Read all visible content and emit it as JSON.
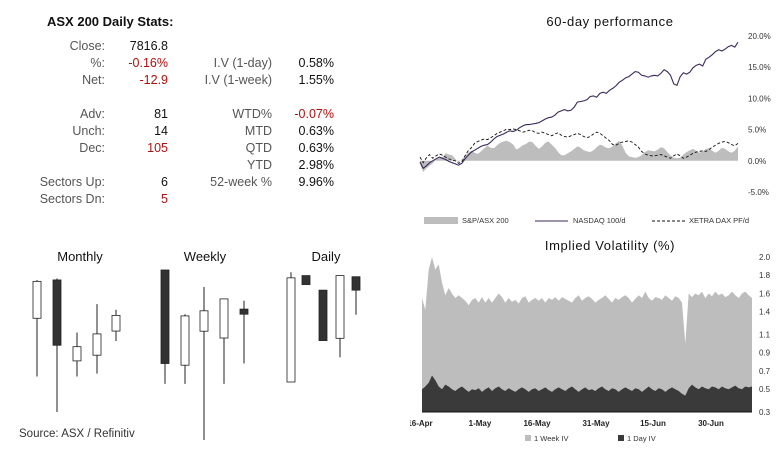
{
  "stats": {
    "title": "ASX 200 Daily Stats:",
    "left": [
      {
        "label": "Close:",
        "value": "7816.8",
        "neg": false
      },
      {
        "label": "%:",
        "value": "-0.16%",
        "neg": true
      },
      {
        "label": "Net:",
        "value": "-12.9",
        "neg": true
      },
      {
        "label": "Adv:",
        "value": "81",
        "neg": false
      },
      {
        "label": "Unch:",
        "value": "14",
        "neg": false
      },
      {
        "label": "Dec:",
        "value": "105",
        "neg": true
      },
      {
        "label": "Sectors Up:",
        "value": "6",
        "neg": false
      },
      {
        "label": "Sectors Dn:",
        "value": "5",
        "neg": true
      }
    ],
    "right": [
      {
        "label": "I.V (1-day)",
        "value": "0.58%",
        "neg": false
      },
      {
        "label": "I.V (1-week)",
        "value": "1.55%",
        "neg": false
      },
      {
        "label": "WTD%",
        "value": "-0.07%",
        "neg": true
      },
      {
        "label": "MTD",
        "value": "0.63%",
        "neg": false
      },
      {
        "label": "QTD",
        "value": "0.63%",
        "neg": false
      },
      {
        "label": "YTD",
        "value": "2.98%",
        "neg": false
      },
      {
        "label": "52-week %",
        "value": "9.96%",
        "neg": false
      }
    ]
  },
  "source": "Source: ASX / Refinitiv",
  "colors": {
    "negative": "#b01010",
    "area_light": "#bdbdbd",
    "area_dark": "#3a3a3a",
    "nasdaq": "#3b2a5a"
  },
  "chart_data": [
    {
      "type": "line",
      "title": "60-day performance",
      "ylim": [
        -5,
        20
      ],
      "yticks": [
        "20.0%",
        "15.0%",
        "10.0%",
        "5.0%",
        "0.0%",
        "-5.0%"
      ],
      "grid": false,
      "legend_position": "bottom",
      "series": [
        {
          "name": "S&P/ASX 200",
          "style": "area",
          "values": [
            -0.5,
            -1.8,
            -1.2,
            -0.8,
            -0.4,
            0.2,
            0.4,
            0.6,
            1.2,
            1.0,
            0.9,
            0.3,
            -0.3,
            0.2,
            0.8,
            1.3,
            1.6,
            1.3,
            1.1,
            1.5,
            2.0,
            2.4,
            2.1,
            2.0,
            2.5,
            2.9,
            3.1,
            3.2,
            3.0,
            2.6,
            1.8,
            2.1,
            2.5,
            2.7,
            3.1,
            3.0,
            2.4,
            1.9,
            2.3,
            2.9,
            3.1,
            2.6,
            2.1,
            1.4,
            0.9,
            0.9,
            1.2,
            1.5,
            1.9,
            2.3,
            2.1,
            1.7,
            1.5,
            1.4,
            1.7,
            2.2,
            2.6,
            2.4,
            2.1,
            2.0,
            2.3,
            2.8,
            3.2,
            2.4,
            1.3,
            0.7,
            0.6,
            0.5,
            0.6,
            0.9,
            1.4,
            1.7,
            1.6,
            1.5,
            1.8,
            2.2,
            2.0,
            1.4,
            0.9,
            0.5,
            0.4,
            0.5,
            1.0,
            1.4,
            1.7,
            1.9,
            1.6,
            1.3,
            1.5,
            1.9,
            2.0,
            1.6,
            1.3,
            1.6,
            2.1,
            1.9,
            1.5,
            1.3,
            1.6,
            2.3
          ]
        },
        {
          "name": "NASDAQ 100/d",
          "style": "line",
          "values": [
            -0.2,
            -1.2,
            -0.8,
            -0.3,
            0.0,
            0.3,
            0.6,
            0.4,
            0.2,
            -0.1,
            -0.3,
            -0.5,
            -0.7,
            -0.4,
            0.3,
            0.9,
            1.4,
            1.7,
            2.0,
            2.3,
            2.5,
            2.6,
            3.0,
            3.5,
            3.9,
            4.1,
            4.3,
            4.6,
            4.8,
            4.7,
            4.9,
            5.3,
            5.6,
            5.8,
            5.8,
            5.9,
            6.0,
            6.1,
            6.4,
            6.7,
            6.9,
            7.0,
            7.3,
            7.8,
            8.0,
            8.2,
            8.0,
            8.1,
            8.6,
            9.4,
            9.5,
            9.6,
            9.8,
            10.3,
            10.4,
            10.2,
            10.8,
            11.0,
            10.8,
            11.3,
            11.6,
            12.0,
            12.6,
            12.9,
            13.3,
            13.5,
            13.9,
            14.3,
            14.2,
            13.7,
            13.6,
            13.4,
            13.6,
            13.7,
            13.6,
            14.0,
            14.6,
            14.3,
            13.7,
            12.3,
            12.1,
            13.5,
            14.1,
            13.9,
            14.2,
            14.9,
            15.3,
            15.5,
            15.2,
            16.3,
            16.6,
            17.0,
            17.5,
            17.8,
            17.6,
            17.9,
            18.3,
            18.5,
            18.2,
            19.0
          ]
        },
        {
          "name": "XETRA DAX PF/d",
          "style": "dashed",
          "values": [
            0.6,
            -0.3,
            0.5,
            1.0,
            0.4,
            0.8,
            1.1,
            0.9,
            0.6,
            0.3,
            0.1,
            0.0,
            -0.4,
            -0.2,
            0.8,
            1.6,
            2.1,
            2.8,
            3.1,
            3.3,
            3.5,
            3.4,
            3.7,
            4.0,
            4.4,
            4.6,
            4.8,
            5.1,
            5.0,
            5.1,
            5.0,
            4.8,
            4.6,
            4.7,
            4.9,
            4.8,
            4.5,
            4.4,
            4.6,
            4.4,
            4.2,
            4.0,
            4.3,
            4.5,
            4.1,
            3.9,
            3.8,
            4.0,
            4.2,
            4.4,
            4.2,
            3.9,
            3.7,
            3.9,
            4.3,
            4.6,
            4.4,
            4.0,
            3.6,
            3.2,
            2.6,
            2.5,
            2.8,
            3.0,
            3.1,
            3.2,
            3.0,
            2.6,
            2.2,
            1.5,
            1.1,
            0.9,
            0.8,
            0.8,
            0.9,
            1.0,
            0.8,
            0.6,
            0.4,
            0.8,
            1.1,
            0.8,
            0.4,
            0.6,
            0.9,
            1.2,
            1.4,
            1.5,
            1.6,
            1.5,
            1.8,
            2.2,
            2.5,
            2.8,
            3.0,
            3.1,
            2.9,
            2.6,
            2.4,
            2.8
          ]
        }
      ]
    },
    {
      "type": "area",
      "title": "Implied Volatility (%)",
      "ylim": [
        0.3,
        2.0
      ],
      "yticks": [
        "2.0",
        "1.8",
        "1.6",
        "1.4",
        "1.1",
        "0.9",
        "0.7",
        "0.5",
        "0.3"
      ],
      "x_labels": [
        "16-Apr",
        "1-May",
        "16-May",
        "31-May",
        "15-Jun",
        "30-Jun"
      ],
      "grid": false,
      "legend_position": "bottom",
      "series": [
        {
          "name": "1 Week IV",
          "values": [
            1.55,
            1.42,
            1.86,
            2.0,
            1.86,
            1.92,
            1.72,
            1.58,
            1.66,
            1.6,
            1.55,
            1.58,
            1.55,
            1.52,
            1.47,
            1.53,
            1.55,
            1.5,
            1.56,
            1.5,
            1.55,
            1.5,
            1.55,
            1.6,
            1.56,
            1.5,
            1.55,
            1.51,
            1.53,
            1.49,
            1.55,
            1.57,
            1.5,
            1.53,
            1.55,
            1.52,
            1.55,
            1.5,
            1.55,
            1.53,
            1.56,
            1.52,
            1.56,
            1.54,
            1.52,
            1.5,
            1.55,
            1.58,
            1.52,
            1.55,
            1.57,
            1.54,
            1.5,
            1.53,
            1.55,
            1.58,
            1.54,
            1.5,
            1.55,
            1.53,
            1.56,
            1.58,
            1.55,
            1.5,
            1.54,
            1.58,
            1.55,
            1.62,
            1.55,
            1.52,
            1.56,
            1.55,
            1.53,
            1.58,
            1.55,
            1.52,
            1.57,
            1.55,
            1.5,
            1.05,
            1.6,
            1.56,
            1.6,
            1.58,
            1.62,
            1.55,
            1.6,
            1.57,
            1.62,
            1.58,
            1.6,
            1.56,
            1.58,
            1.62,
            1.58,
            1.55,
            1.6,
            1.62,
            1.58,
            1.55
          ]
        },
        {
          "name": "1 Day IV",
          "values": [
            0.55,
            0.58,
            0.62,
            0.7,
            0.65,
            0.58,
            0.55,
            0.6,
            0.58,
            0.55,
            0.53,
            0.56,
            0.58,
            0.55,
            0.52,
            0.55,
            0.54,
            0.56,
            0.52,
            0.55,
            0.57,
            0.53,
            0.56,
            0.58,
            0.55,
            0.53,
            0.56,
            0.54,
            0.52,
            0.55,
            0.57,
            0.55,
            0.52,
            0.55,
            0.56,
            0.53,
            0.55,
            0.57,
            0.54,
            0.52,
            0.55,
            0.57,
            0.55,
            0.53,
            0.56,
            0.58,
            0.55,
            0.52,
            0.55,
            0.57,
            0.54,
            0.55,
            0.53,
            0.56,
            0.58,
            0.55,
            0.53,
            0.56,
            0.55,
            0.52,
            0.55,
            0.57,
            0.55,
            0.53,
            0.56,
            0.55,
            0.52,
            0.55,
            0.58,
            0.55,
            0.53,
            0.56,
            0.55,
            0.52,
            0.55,
            0.57,
            0.55,
            0.53,
            0.5,
            0.48,
            0.56,
            0.6,
            0.57,
            0.55,
            0.58,
            0.56,
            0.55,
            0.58,
            0.57,
            0.55,
            0.58,
            0.56,
            0.55,
            0.57,
            0.59,
            0.56,
            0.55,
            0.58,
            0.57,
            0.58
          ]
        }
      ]
    },
    {
      "type": "candlestick",
      "title": "Monthly",
      "candles": [
        {
          "o": 0.66,
          "c": 0.92,
          "h": 0.93,
          "l": 0.25
        },
        {
          "o": 0.93,
          "c": 0.47,
          "h": 0.94,
          "l": 0.0
        },
        {
          "o": 0.36,
          "c": 0.46,
          "h": 0.56,
          "l": 0.25
        },
        {
          "o": 0.4,
          "c": 0.55,
          "h": 0.76,
          "l": 0.27
        },
        {
          "o": 0.57,
          "c": 0.68,
          "h": 0.72,
          "l": 0.5
        }
      ]
    },
    {
      "type": "candlestick",
      "title": "Weekly",
      "candles": [
        {
          "o": 1.0,
          "c": 0.45,
          "h": 1.0,
          "l": 0.33
        },
        {
          "o": 0.44,
          "c": 0.73,
          "h": 0.74,
          "l": 0.33
        },
        {
          "o": 0.64,
          "c": 0.76,
          "h": 0.9,
          "l": 0.0
        },
        {
          "o": 0.6,
          "c": 0.83,
          "h": 0.83,
          "l": 0.33
        },
        {
          "o": 0.77,
          "c": 0.74,
          "h": 0.82,
          "l": 0.45
        }
      ]
    },
    {
      "type": "candlestick",
      "title": "Daily",
      "candles": [
        {
          "o": 0.0,
          "c": 0.93,
          "h": 0.98,
          "l": 0.0
        },
        {
          "o": 0.95,
          "c": 0.87,
          "h": 0.95,
          "l": 0.87
        },
        {
          "o": 0.82,
          "c": 0.37,
          "h": 0.82,
          "l": 0.37
        },
        {
          "o": 0.39,
          "c": 0.95,
          "h": 0.95,
          "l": 0.22
        },
        {
          "o": 0.94,
          "c": 0.82,
          "h": 0.94,
          "l": 0.6
        }
      ]
    }
  ]
}
